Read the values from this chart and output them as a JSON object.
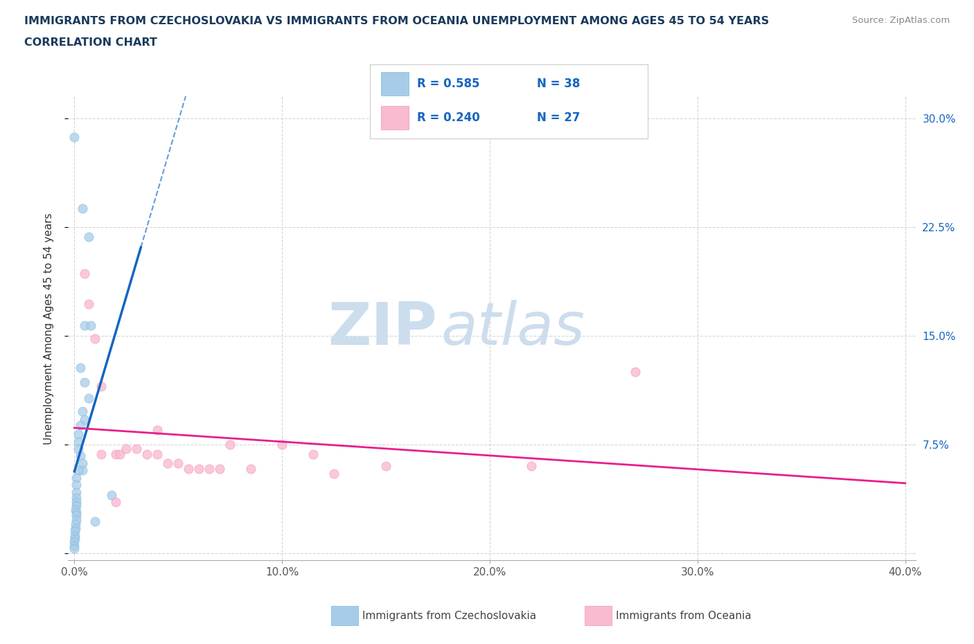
{
  "title_line1": "IMMIGRANTS FROM CZECHOSLOVAKIA VS IMMIGRANTS FROM OCEANIA UNEMPLOYMENT AMONG AGES 45 TO 54 YEARS",
  "title_line2": "CORRELATION CHART",
  "source_text": "Source: ZipAtlas.com",
  "ylabel": "Unemployment Among Ages 45 to 54 years",
  "xlim": [
    -0.003,
    0.405
  ],
  "ylim": [
    -0.005,
    0.315
  ],
  "xticks": [
    0.0,
    0.1,
    0.2,
    0.3,
    0.4
  ],
  "xticklabels": [
    "0.0%",
    "10.0%",
    "20.0%",
    "30.0%",
    "40.0%"
  ],
  "yticks": [
    0.0,
    0.075,
    0.15,
    0.225,
    0.3
  ],
  "yticklabels": [
    "",
    "7.5%",
    "15.0%",
    "22.5%",
    "30.0%"
  ],
  "R_blue": 0.585,
  "N_blue": 38,
  "R_pink": 0.24,
  "N_pink": 27,
  "blue_color": "#7ab8e0",
  "blue_fill_color": "#a8cce8",
  "blue_line_color": "#1565c0",
  "pink_color": "#f48fb1",
  "pink_fill_color": "#f8bbd0",
  "pink_line_color": "#e91e8c",
  "blue_scatter": [
    [
      0.0,
      0.287
    ],
    [
      0.004,
      0.238
    ],
    [
      0.007,
      0.218
    ],
    [
      0.005,
      0.157
    ],
    [
      0.008,
      0.157
    ],
    [
      0.003,
      0.128
    ],
    [
      0.005,
      0.118
    ],
    [
      0.007,
      0.107
    ],
    [
      0.004,
      0.098
    ],
    [
      0.005,
      0.092
    ],
    [
      0.003,
      0.088
    ],
    [
      0.002,
      0.082
    ],
    [
      0.002,
      0.077
    ],
    [
      0.002,
      0.072
    ],
    [
      0.003,
      0.067
    ],
    [
      0.004,
      0.062
    ],
    [
      0.004,
      0.057
    ],
    [
      0.002,
      0.057
    ],
    [
      0.001,
      0.052
    ],
    [
      0.001,
      0.047
    ],
    [
      0.001,
      0.042
    ],
    [
      0.001,
      0.038
    ],
    [
      0.001,
      0.035
    ],
    [
      0.001,
      0.033
    ],
    [
      0.0005,
      0.03
    ],
    [
      0.001,
      0.028
    ],
    [
      0.001,
      0.026
    ],
    [
      0.001,
      0.023
    ],
    [
      0.0005,
      0.02
    ],
    [
      0.0005,
      0.017
    ],
    [
      0.0003,
      0.015
    ],
    [
      0.0003,
      0.012
    ],
    [
      0.0003,
      0.01
    ],
    [
      0.0,
      0.008
    ],
    [
      0.0,
      0.005
    ],
    [
      0.0,
      0.003
    ],
    [
      0.018,
      0.04
    ],
    [
      0.01,
      0.022
    ]
  ],
  "pink_scatter": [
    [
      0.005,
      0.193
    ],
    [
      0.007,
      0.172
    ],
    [
      0.01,
      0.148
    ],
    [
      0.013,
      0.115
    ],
    [
      0.013,
      0.068
    ],
    [
      0.02,
      0.068
    ],
    [
      0.022,
      0.068
    ],
    [
      0.025,
      0.072
    ],
    [
      0.03,
      0.072
    ],
    [
      0.035,
      0.068
    ],
    [
      0.04,
      0.068
    ],
    [
      0.04,
      0.085
    ],
    [
      0.045,
      0.062
    ],
    [
      0.05,
      0.062
    ],
    [
      0.055,
      0.058
    ],
    [
      0.06,
      0.058
    ],
    [
      0.065,
      0.058
    ],
    [
      0.07,
      0.058
    ],
    [
      0.075,
      0.075
    ],
    [
      0.085,
      0.058
    ],
    [
      0.1,
      0.075
    ],
    [
      0.115,
      0.068
    ],
    [
      0.125,
      0.055
    ],
    [
      0.15,
      0.06
    ],
    [
      0.22,
      0.06
    ],
    [
      0.27,
      0.125
    ],
    [
      0.02,
      0.035
    ]
  ],
  "watermark_zip": "ZIP",
  "watermark_atlas": "atlas",
  "watermark_color": "#ccdded",
  "legend_label_blue": "Immigrants from Czechoslovakia",
  "legend_label_pink": "Immigrants from Oceania",
  "background_color": "#ffffff",
  "grid_color": "#cccccc",
  "blue_line_solid_xlim": [
    0.0,
    0.032
  ],
  "blue_line_dash_xlim": [
    0.0,
    0.145
  ],
  "pink_line_xlim": [
    0.0,
    0.4
  ]
}
